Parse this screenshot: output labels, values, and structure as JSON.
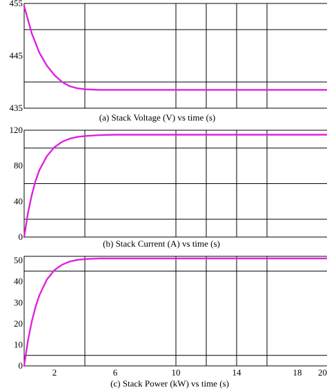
{
  "colors": {
    "line": "#e020e0",
    "grid": "#000000",
    "background": "#ffffff"
  },
  "chart_data": [
    {
      "type": "line",
      "title": "(a) Stack Voltage (V) vs time (s)",
      "xlim": [
        0,
        20
      ],
      "ylim": [
        435,
        455
      ],
      "y_ticks": [
        435,
        445,
        455
      ],
      "y_tick_labels": [
        "435",
        "445",
        "455"
      ],
      "y_gridlines": [
        440,
        450
      ],
      "x_gridlines": [
        4,
        10,
        12,
        14,
        16
      ],
      "grid": true,
      "series": [
        {
          "x": [
            0,
            0.5,
            1,
            1.5,
            2,
            2.5,
            3,
            3.5,
            4,
            5,
            6,
            8,
            10,
            12,
            14,
            16,
            18,
            20
          ],
          "y": [
            454.5,
            449.3,
            445.6,
            443.1,
            441.3,
            440.0,
            439.2,
            438.8,
            438.6,
            438.5,
            438.5,
            438.5,
            438.5,
            438.5,
            438.5,
            438.5,
            438.5,
            438.5
          ]
        }
      ]
    },
    {
      "type": "line",
      "title": "(b) Stack Current (A) vs time (s)",
      "xlim": [
        0,
        20
      ],
      "ylim": [
        0,
        120
      ],
      "y_ticks": [
        0,
        40,
        80,
        120
      ],
      "y_tick_labels": [
        "0",
        "40",
        "80",
        "120"
      ],
      "y_gridlines": [
        20,
        60,
        100
      ],
      "x_gridlines": [
        4,
        10,
        12,
        14,
        16
      ],
      "grid": true,
      "series": [
        {
          "x": [
            0,
            0.25,
            0.5,
            0.75,
            1,
            1.5,
            2,
            2.5,
            3,
            3.5,
            4,
            5,
            6,
            8,
            10,
            12,
            14,
            16,
            18,
            20
          ],
          "y": [
            0,
            27,
            47,
            63,
            75,
            91,
            101,
            107,
            110.5,
            112.5,
            113.5,
            114.5,
            115,
            115,
            115,
            115,
            115,
            115,
            115,
            115
          ]
        }
      ]
    },
    {
      "type": "line",
      "title": "(c) Stack Power (kW) vs time (s)",
      "xlim": [
        0,
        20
      ],
      "ylim": [
        0,
        52
      ],
      "x_ticks": [
        2,
        6,
        10,
        14,
        18,
        20
      ],
      "x_tick_labels": [
        "2",
        "6",
        "10",
        "14",
        "18",
        "20"
      ],
      "y_ticks": [
        0,
        10,
        20,
        30,
        40,
        50
      ],
      "y_tick_labels": [
        "0",
        "10",
        "20",
        "30",
        "40",
        "50"
      ],
      "y_gridlines": [
        5,
        45
      ],
      "x_gridlines": [
        4,
        10,
        12,
        14,
        16
      ],
      "grid": true,
      "series": [
        {
          "x": [
            0,
            0.25,
            0.5,
            0.75,
            1,
            1.5,
            2,
            2.5,
            3,
            3.5,
            4,
            5,
            6,
            8,
            10,
            12,
            14,
            16,
            18,
            20
          ],
          "y": [
            0,
            12,
            21,
            28,
            33.5,
            41,
            45.5,
            48,
            49.5,
            50.3,
            50.7,
            51,
            51,
            51,
            51,
            51,
            51,
            51,
            51,
            51
          ]
        }
      ]
    }
  ]
}
